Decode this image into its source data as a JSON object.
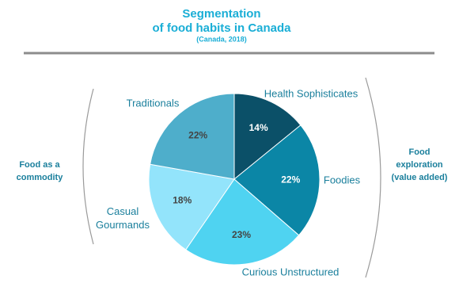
{
  "chart_data": {
    "type": "pie",
    "title": [
      "Segmentation",
      "of food habits in Canada"
    ],
    "subtitle": "(Canada, 2018)",
    "categories": [
      "Health Sophisticates",
      "Foodies",
      "Curious Unstructured",
      "Casual Gourmands",
      "Traditionals"
    ],
    "values": [
      14,
      22,
      23,
      18,
      22
    ],
    "value_labels": [
      "14%",
      "22%",
      "23%",
      "18%",
      "22%"
    ],
    "colors": [
      "#0b5068",
      "#0b86a6",
      "#4fd3f1",
      "#93e4fb",
      "#4eaecb"
    ],
    "annotations": [
      [
        "Food as a",
        "commodity"
      ],
      [
        "Food",
        "exploration",
        "(value added)"
      ]
    ]
  }
}
